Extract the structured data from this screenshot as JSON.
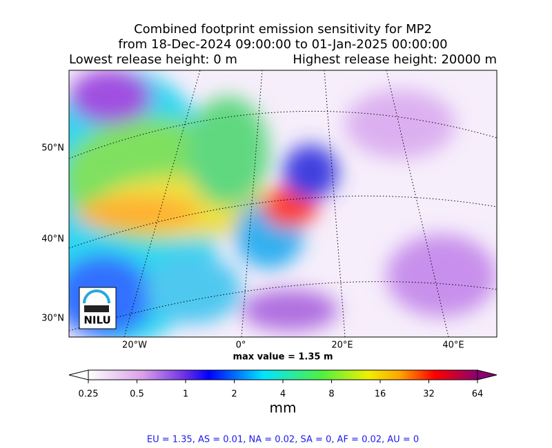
{
  "title": {
    "line1": "Combined footprint emission sensitivity for MP2",
    "line2": "from 18-Dec-2024 09:00:00 to 01-Jan-2025 00:00:00",
    "lowest": "Lowest release height: 0 m",
    "highest": "Highest release height: 20000 m"
  },
  "map": {
    "lat_labels": [
      "50°N",
      "40°N",
      "30°N"
    ],
    "lon_labels": [
      "20°W",
      "0°",
      "20°E",
      "40°E"
    ],
    "logo": "NILU"
  },
  "max_value": "max value = 1.35 m",
  "colorbar": {
    "lim": [
      0.25,
      64
    ],
    "ticks": [
      0.25,
      0.5,
      1,
      2,
      4,
      8,
      16,
      32,
      64
    ],
    "label": "mm",
    "log": true
  },
  "footer": "EU = 1.35,  AS = 0.01,  NA = 0.02,  SA = 0,  AF = 0.02,  AU = 0"
}
